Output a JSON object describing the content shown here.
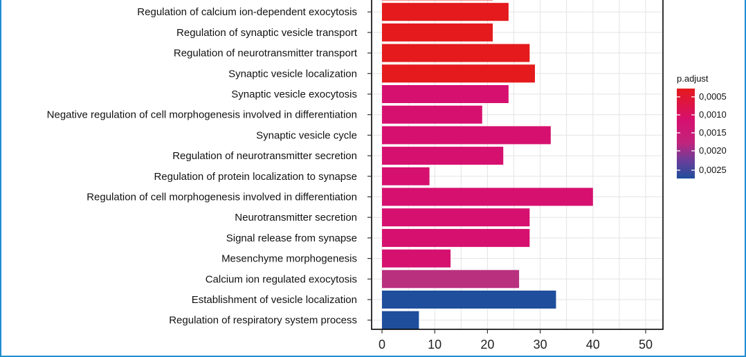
{
  "chart_data": {
    "type": "bar",
    "orientation": "horizontal",
    "categories": [
      "",
      "Regulation of calcium ion-dependent exocytosis",
      "Regulation of synaptic vesicle transport",
      "Regulation of neurotransmitter transport",
      "Synaptic vesicle localization",
      "Synaptic vesicle exocytosis",
      "Negative regulation of cell morphogenesis involved in differentiation",
      "Synaptic vesicle cycle",
      "Regulation of neurotransmitter secretion",
      "Regulation of protein localization to synapse",
      "Regulation of cell morphogenesis involved in differentiation",
      "Neurotransmitter secretion",
      "Signal release from synapse",
      "Mesenchyme morphogenesis",
      "Calcium ion regulated exocytosis",
      "Establishment of vesicle localization",
      "Regulation of respiratory system process"
    ],
    "values": [
      21,
      24,
      21,
      28,
      29,
      24,
      19,
      32,
      23,
      9,
      40,
      28,
      28,
      13,
      26,
      33,
      7
    ],
    "p_adjust": [
      0.0004,
      0.0004,
      0.0004,
      0.0004,
      0.0004,
      0.0012,
      0.0012,
      0.0012,
      0.0012,
      0.0012,
      0.0012,
      0.0012,
      0.0012,
      0.0012,
      0.0018,
      0.0027,
      0.0027
    ],
    "xlim": [
      0,
      52
    ],
    "xticks": [
      0,
      10,
      20,
      30,
      40,
      50
    ],
    "xlabel": "",
    "ylabel": "",
    "grid": true,
    "legend": {
      "title": "p.adjust",
      "placement": "right",
      "labels": [
        "0,0005",
        "0,0010",
        "0,0015",
        "0,0020",
        "0,0025"
      ],
      "gradient_colors": [
        "#e41a1c",
        "#d6106f",
        "#b8307e",
        "#6a3d9a",
        "#1f4e9c"
      ]
    }
  }
}
